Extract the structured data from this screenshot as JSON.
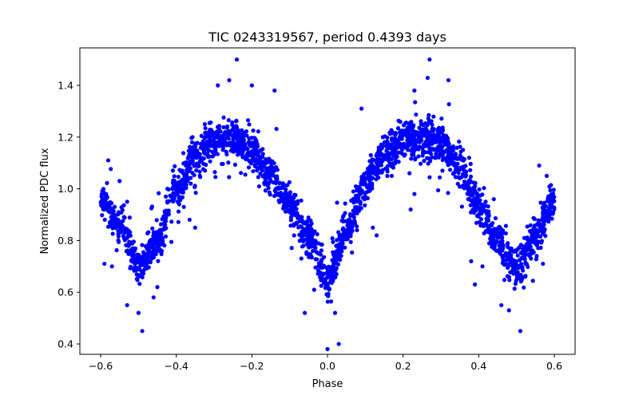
{
  "chart_data": {
    "type": "scatter",
    "title": "TIC 0243319567, period 0.4393 days",
    "xlabel": "Phase",
    "ylabel": "Normalized PDC flux",
    "xlim": [
      -0.655,
      0.655
    ],
    "ylim": [
      0.36,
      1.545
    ],
    "xticks": [
      -0.6,
      -0.4,
      -0.2,
      0.0,
      0.2,
      0.4,
      0.6
    ],
    "xtick_labels": [
      "−0.6",
      "−0.4",
      "−0.2",
      "0.0",
      "0.2",
      "0.4",
      "0.6"
    ],
    "yticks": [
      0.4,
      0.6,
      0.8,
      1.0,
      1.2,
      1.4
    ],
    "ytick_labels": [
      "0.4",
      "0.6",
      "0.8",
      "1.0",
      "1.2",
      "1.4"
    ],
    "grid": false,
    "marker_color": "#0000ff",
    "series": [
      {
        "trend": {
          "x": [
            -0.6,
            -0.55,
            -0.5,
            -0.45,
            -0.4,
            -0.35,
            -0.3,
            -0.25,
            -0.2,
            -0.15,
            -0.1,
            -0.05,
            0.0,
            0.05,
            0.1,
            0.15,
            0.2,
            0.25,
            0.3,
            0.35,
            0.4,
            0.45,
            0.5,
            0.55,
            0.6
          ],
          "y": [
            0.97,
            0.86,
            0.7,
            0.8,
            0.99,
            1.12,
            1.19,
            1.2,
            1.15,
            1.05,
            0.94,
            0.82,
            0.66,
            0.83,
            1.02,
            1.13,
            1.19,
            1.2,
            1.17,
            1.08,
            0.93,
            0.79,
            0.7,
            0.81,
            0.97
          ]
        },
        "scatter_sd": 0.035,
        "outliers": [
          {
            "x": -0.24,
            "y": 1.5
          },
          {
            "x": 0.27,
            "y": 1.5
          },
          {
            "x": -0.29,
            "y": 1.4
          },
          {
            "x": -0.2,
            "y": 1.4
          },
          {
            "x": 0.32,
            "y": 1.42
          },
          {
            "x": -0.26,
            "y": 1.42
          },
          {
            "x": -0.14,
            "y": 1.38
          },
          {
            "x": 0.23,
            "y": 1.38
          },
          {
            "x": 0.09,
            "y": 1.31
          },
          {
            "x": -0.49,
            "y": 0.45
          },
          {
            "x": 0.51,
            "y": 0.45
          },
          {
            "x": 0.0,
            "y": 0.38
          },
          {
            "x": 0.03,
            "y": 0.4
          },
          {
            "x": -0.06,
            "y": 0.52
          },
          {
            "x": 0.02,
            "y": 0.52
          },
          {
            "x": -0.53,
            "y": 0.55
          },
          {
            "x": -0.5,
            "y": 0.52
          },
          {
            "x": 0.46,
            "y": 0.55
          },
          {
            "x": 0.48,
            "y": 0.53
          },
          {
            "x": -0.59,
            "y": 0.71
          },
          {
            "x": -0.57,
            "y": 0.7
          },
          {
            "x": 0.57,
            "y": 0.71
          },
          {
            "x": -0.55,
            "y": 1.03
          },
          {
            "x": 0.56,
            "y": 1.09
          },
          {
            "x": -0.58,
            "y": 1.11
          },
          {
            "x": 0.58,
            "y": 1.05
          },
          {
            "x": -0.41,
            "y": 1.0
          },
          {
            "x": -0.35,
            "y": 0.85
          },
          {
            "x": 0.23,
            "y": 0.98
          },
          {
            "x": 0.13,
            "y": 0.82
          },
          {
            "x": 0.22,
            "y": 0.92
          },
          {
            "x": -0.46,
            "y": 0.58
          },
          {
            "x": 0.44,
            "y": 0.96
          },
          {
            "x": -0.38,
            "y": 0.93
          },
          {
            "x": 0.39,
            "y": 0.63
          },
          {
            "x": 0.12,
            "y": 0.85
          },
          {
            "x": -0.09,
            "y": 0.9
          },
          {
            "x": -0.53,
            "y": 0.95
          },
          {
            "x": 0.17,
            "y": 1.05
          },
          {
            "x": -0.45,
            "y": 0.62
          },
          {
            "x": 0.41,
            "y": 0.7
          },
          {
            "x": 0.38,
            "y": 0.72
          }
        ]
      }
    ]
  }
}
